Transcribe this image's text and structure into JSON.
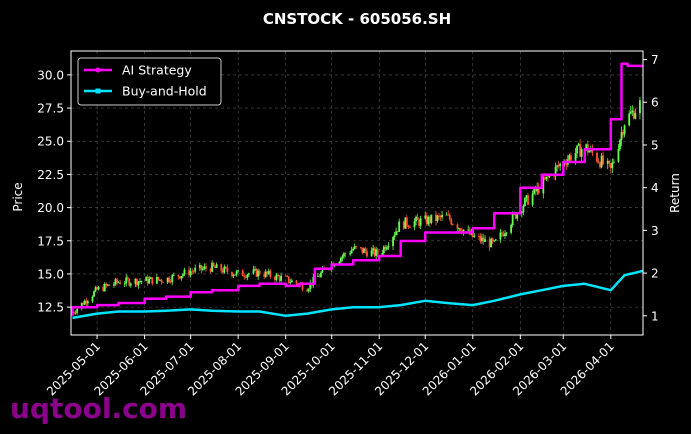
{
  "watermark": "uqtool.com",
  "chart_data": {
    "type": "line",
    "title": "CNSTOCK - 605056.SH",
    "ylabel": "Price",
    "y2label": "Return",
    "ylim": [
      10.4,
      31.8
    ],
    "y2lim": [
      0.55,
      7.2
    ],
    "y_ticks": [
      12.5,
      15.0,
      17.5,
      20.0,
      22.5,
      25.0,
      27.5,
      30.0
    ],
    "y_tick_labels": [
      "12.5",
      "15.0",
      "17.5",
      "20.0",
      "22.5",
      "25.0",
      "27.5",
      "30.0"
    ],
    "y2_ticks": [
      1,
      2,
      3,
      4,
      5,
      6,
      7
    ],
    "y2_tick_labels": [
      "1",
      "2",
      "3",
      "4",
      "5",
      "6",
      "7"
    ],
    "x_range": [
      "2025-04-14",
      "2026-04-22"
    ],
    "x_ticks": [
      "2025-05-01",
      "2025-06-01",
      "2025-07-01",
      "2025-08-01",
      "2025-09-01",
      "2025-10-01",
      "2025-11-01",
      "2025-12-01",
      "2026-01-01",
      "2026-02-01",
      "2026-03-01",
      "2026-04-01"
    ],
    "grid": true,
    "legend_position": "top-left",
    "colors": {
      "background": "#000000",
      "up_candle": "#66ff55",
      "down_candle": "#ff5533",
      "ai_strategy": "#ff00ff",
      "buy_and_hold": "#00e5ff",
      "grid": "#555555",
      "text": "#ffffff",
      "watermark": "#8b008b"
    },
    "price_series": {
      "name": "Price",
      "x": [
        "2025-04-15",
        "2025-05-01",
        "2025-05-15",
        "2025-06-01",
        "2025-06-15",
        "2025-07-01",
        "2025-07-15",
        "2025-08-01",
        "2025-08-15",
        "2025-09-01",
        "2025-09-15",
        "2025-10-01",
        "2025-10-15",
        "2025-11-01",
        "2025-11-15",
        "2025-12-01",
        "2025-12-15",
        "2026-01-01",
        "2026-01-15",
        "2026-02-01",
        "2026-02-15",
        "2026-03-01",
        "2026-03-15",
        "2026-04-01",
        "2026-04-10",
        "2026-04-20"
      ],
      "close": [
        12.1,
        13.8,
        14.4,
        14.5,
        14.6,
        15.2,
        15.5,
        15.0,
        15.1,
        14.6,
        14.0,
        15.8,
        16.9,
        16.5,
        18.8,
        19.0,
        19.3,
        17.8,
        17.2,
        20.0,
        21.7,
        23.5,
        24.6,
        22.8,
        26.5,
        27.8
      ]
    },
    "series": [
      {
        "name": "AI Strategy",
        "axis": "right",
        "x": [
          "2025-04-15",
          "2025-05-01",
          "2025-05-15",
          "2025-06-01",
          "2025-06-15",
          "2025-07-01",
          "2025-07-15",
          "2025-08-01",
          "2025-08-15",
          "2025-09-01",
          "2025-09-10",
          "2025-09-20",
          "2025-10-01",
          "2025-10-15",
          "2025-11-01",
          "2025-11-15",
          "2025-12-01",
          "2025-12-15",
          "2026-01-01",
          "2026-01-15",
          "2026-02-01",
          "2026-02-15",
          "2026-03-01",
          "2026-03-15",
          "2026-04-01",
          "2026-04-08",
          "2026-04-12",
          "2026-04-22"
        ],
        "values": [
          1.0,
          1.2,
          1.25,
          1.3,
          1.4,
          1.45,
          1.55,
          1.6,
          1.7,
          1.75,
          1.7,
          1.75,
          2.1,
          2.2,
          2.3,
          2.4,
          2.75,
          2.95,
          2.95,
          3.05,
          3.4,
          4.0,
          4.3,
          4.6,
          4.9,
          5.6,
          6.9,
          6.85
        ]
      },
      {
        "name": "Buy-and-Hold",
        "axis": "right",
        "x": [
          "2025-04-15",
          "2025-05-01",
          "2025-05-15",
          "2025-06-01",
          "2025-06-15",
          "2025-07-01",
          "2025-07-15",
          "2025-08-01",
          "2025-08-15",
          "2025-09-01",
          "2025-09-15",
          "2025-10-01",
          "2025-10-15",
          "2025-11-01",
          "2025-11-15",
          "2025-12-01",
          "2025-12-15",
          "2026-01-01",
          "2026-01-15",
          "2026-02-01",
          "2026-02-15",
          "2026-03-01",
          "2026-03-15",
          "2026-04-01",
          "2026-04-10",
          "2026-04-22"
        ],
        "values": [
          0.95,
          1.05,
          1.1,
          1.1,
          1.12,
          1.15,
          1.12,
          1.1,
          1.1,
          1.0,
          1.05,
          1.15,
          1.2,
          1.2,
          1.25,
          1.35,
          1.3,
          1.25,
          1.35,
          1.5,
          1.6,
          1.7,
          1.75,
          1.6,
          1.95,
          2.05
        ]
      }
    ]
  }
}
